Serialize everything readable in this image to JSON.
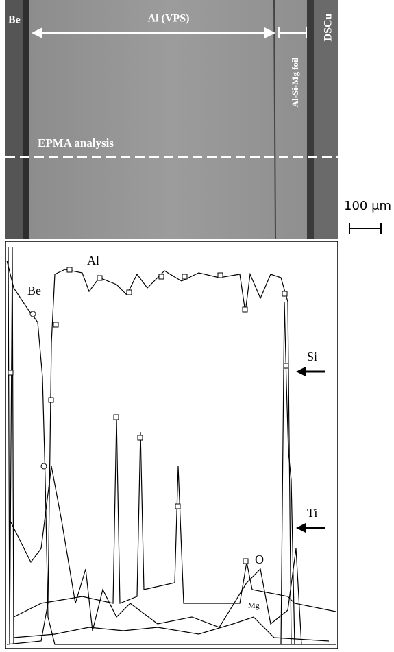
{
  "micrograph": {
    "labels": {
      "be": "Be",
      "al": "Al (VPS)",
      "foil": "Al-Si-Mg foil",
      "dscu": "DSCu",
      "epma": "EPMA analysis"
    }
  },
  "scale_bar": {
    "label": "100 μm"
  },
  "profile": {
    "labels": {
      "al": "Al",
      "be": "Be",
      "si": "Si",
      "ti": "Ti",
      "o": "O",
      "mg": "Mg"
    }
  }
}
